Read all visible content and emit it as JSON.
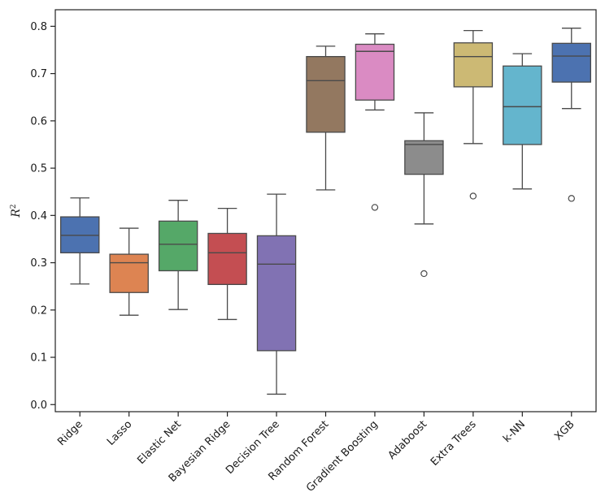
{
  "chart_data": {
    "type": "box",
    "title": "",
    "xlabel": "",
    "ylabel": "R",
    "ylabel_superscript": "2",
    "ylim": [
      -0.015,
      0.835
    ],
    "yticks": [
      0.0,
      0.1,
      0.2,
      0.3,
      0.4,
      0.5,
      0.6,
      0.7,
      0.8
    ],
    "ytick_labels": [
      "0.0",
      "0.1",
      "0.2",
      "0.3",
      "0.4",
      "0.5",
      "0.6",
      "0.7",
      "0.8"
    ],
    "grid": false,
    "categories": [
      "Ridge",
      "Lasso",
      "Elastic Net",
      "Bayesian Ridge",
      "Decision Tree",
      "Random Forest",
      "Gradient Boosting",
      "Adaboost",
      "Extra Trees",
      "k-NN",
      "XGB"
    ],
    "boxes": [
      {
        "label": "Ridge",
        "color": "#4c72b0",
        "whisker_low": 0.255,
        "q1": 0.321,
        "median": 0.358,
        "q3": 0.397,
        "whisker_high": 0.437,
        "outliers": []
      },
      {
        "label": "Lasso",
        "color": "#dd8452",
        "whisker_low": 0.189,
        "q1": 0.237,
        "median": 0.3,
        "q3": 0.318,
        "whisker_high": 0.373,
        "outliers": []
      },
      {
        "label": "Elastic Net",
        "color": "#55a868",
        "whisker_low": 0.201,
        "q1": 0.283,
        "median": 0.339,
        "q3": 0.388,
        "whisker_high": 0.432,
        "outliers": []
      },
      {
        "label": "Bayesian Ridge",
        "color": "#c44e52",
        "whisker_low": 0.18,
        "q1": 0.254,
        "median": 0.321,
        "q3": 0.362,
        "whisker_high": 0.415,
        "outliers": []
      },
      {
        "label": "Decision Tree",
        "color": "#8172b3",
        "whisker_low": 0.022,
        "q1": 0.114,
        "median": 0.297,
        "q3": 0.357,
        "whisker_high": 0.445,
        "outliers": []
      },
      {
        "label": "Random Forest",
        "color": "#937860",
        "whisker_low": 0.454,
        "q1": 0.576,
        "median": 0.685,
        "q3": 0.736,
        "whisker_high": 0.758,
        "outliers": []
      },
      {
        "label": "Gradient Boosting",
        "color": "#da8bc3",
        "whisker_low": 0.623,
        "q1": 0.644,
        "median": 0.747,
        "q3": 0.762,
        "whisker_high": 0.784,
        "outliers": [
          0.417
        ]
      },
      {
        "label": "Adaboost",
        "color": "#8c8c8c",
        "whisker_low": 0.382,
        "q1": 0.487,
        "median": 0.55,
        "q3": 0.558,
        "whisker_high": 0.617,
        "outliers": [
          0.277
        ]
      },
      {
        "label": "Extra Trees",
        "color": "#ccb974",
        "whisker_low": 0.552,
        "q1": 0.672,
        "median": 0.736,
        "q3": 0.765,
        "whisker_high": 0.791,
        "outliers": [
          0.441
        ]
      },
      {
        "label": "k-NN",
        "color": "#64b5cd",
        "whisker_low": 0.456,
        "q1": 0.55,
        "median": 0.63,
        "q3": 0.716,
        "whisker_high": 0.742,
        "outliers": []
      },
      {
        "label": "XGB",
        "color": "#4c72b0",
        "whisker_low": 0.626,
        "q1": 0.682,
        "median": 0.737,
        "q3": 0.764,
        "whisker_high": 0.796,
        "outliers": [
          0.436
        ]
      }
    ]
  }
}
